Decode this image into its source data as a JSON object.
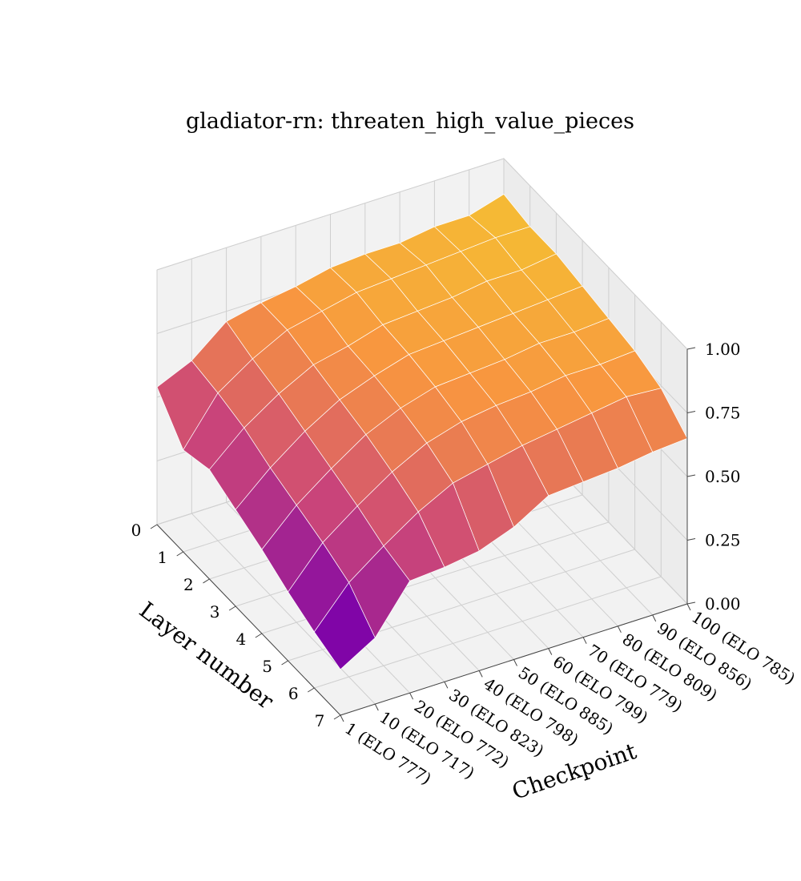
{
  "chart_data": {
    "type": "surface3d",
    "title": "gladiator-rn: threaten_high_value_pieces",
    "xlabel": "Layer number",
    "ylabel": "Checkpoint",
    "zlim": [
      0,
      1
    ],
    "x_ticks": [
      "0",
      "1",
      "2",
      "3",
      "4",
      "5",
      "6",
      "7"
    ],
    "y_ticks": [
      "1 (ELO 777)",
      "10 (ELO 717)",
      "20 (ELO 772)",
      "30 (ELO 823)",
      "40 (ELO 798)",
      "50 (ELO 885)",
      "60 (ELO 799)",
      "70 (ELO 779)",
      "80 (ELO 809)",
      "90 (ELO 856)",
      "100 (ELO 785)"
    ],
    "z_ticks": [
      "0.00",
      "0.25",
      "0.50",
      "0.75",
      "1.00"
    ],
    "colormap": [
      "#0d0887",
      "#7e03a8",
      "#cc4778",
      "#f89540",
      "#f0f921"
    ],
    "z": [
      [
        0.54,
        0.6,
        0.71,
        0.74,
        0.76,
        0.79,
        0.8,
        0.8,
        0.82,
        0.82,
        0.86
      ],
      [
        0.4,
        0.58,
        0.67,
        0.74,
        0.77,
        0.8,
        0.81,
        0.82,
        0.83,
        0.84,
        0.84
      ],
      [
        0.43,
        0.55,
        0.64,
        0.71,
        0.74,
        0.78,
        0.79,
        0.8,
        0.82,
        0.82,
        0.84
      ],
      [
        0.38,
        0.5,
        0.6,
        0.68,
        0.73,
        0.77,
        0.78,
        0.79,
        0.8,
        0.81,
        0.82
      ],
      [
        0.33,
        0.46,
        0.56,
        0.65,
        0.71,
        0.75,
        0.76,
        0.77,
        0.79,
        0.79,
        0.8
      ],
      [
        0.27,
        0.42,
        0.52,
        0.61,
        0.68,
        0.72,
        0.74,
        0.75,
        0.77,
        0.77,
        0.78
      ],
      [
        0.22,
        0.37,
        0.47,
        0.56,
        0.63,
        0.66,
        0.69,
        0.71,
        0.73,
        0.75,
        0.74
      ],
      [
        0.18,
        0.26,
        0.44,
        0.45,
        0.47,
        0.52,
        0.6,
        0.61,
        0.62,
        0.64,
        0.65
      ]
    ]
  }
}
